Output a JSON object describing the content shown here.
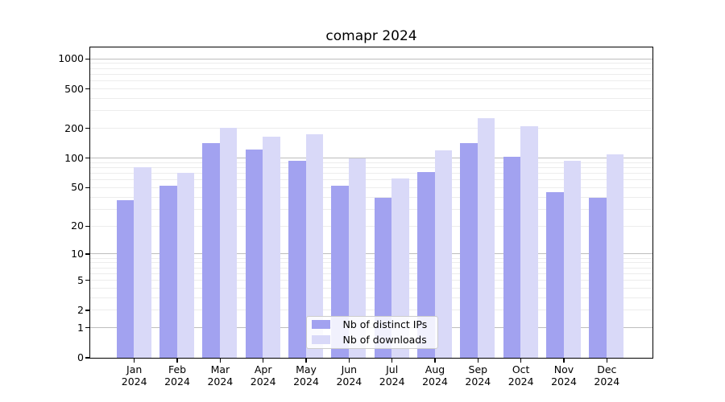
{
  "chart_data": {
    "type": "bar",
    "title": "comapr 2024",
    "categories": [
      "Jan",
      "Feb",
      "Mar",
      "Apr",
      "May",
      "Jun",
      "Jul",
      "Aug",
      "Sep",
      "Oct",
      "Nov",
      "Dec"
    ],
    "year": "2024",
    "series": [
      {
        "name": "Nb of distinct IPs",
        "color": "#a2a2f0",
        "values": [
          37,
          52,
          141,
          121,
          93,
          52,
          39,
          72,
          142,
          102,
          45,
          39
        ]
      },
      {
        "name": "Nb of downloads",
        "color": "#d9d9f8",
        "values": [
          80,
          70,
          199,
          162,
          172,
          98,
          61,
          120,
          249,
          209,
          94,
          108
        ]
      }
    ],
    "y_axis": {
      "scale": "log10(value+1)",
      "tick_labels": [
        0,
        1,
        2,
        5,
        10,
        20,
        50,
        100,
        200,
        500,
        1000
      ],
      "major_gridlines_at": [
        1,
        10,
        100,
        1000
      ],
      "minor_gridline_decades": [
        1,
        10,
        100
      ]
    },
    "x_axis": {
      "label_line_1": "month",
      "label_line_2": "year"
    },
    "legend": {
      "position": "inside-bottom-center"
    },
    "grid": "horizontal-log",
    "background": "#ffffff"
  }
}
